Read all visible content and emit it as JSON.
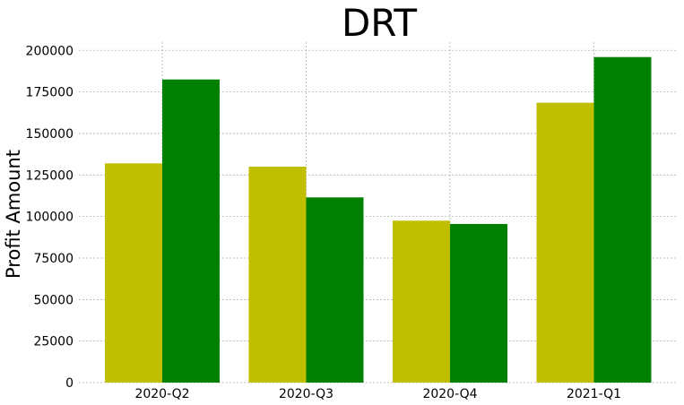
{
  "chart_data": {
    "type": "bar",
    "title": "DRT",
    "xlabel": "",
    "ylabel": "Profit Amount",
    "categories": [
      "2020-Q2",
      "2020-Q3",
      "2020-Q4",
      "2021-Q1"
    ],
    "series": [
      {
        "color": "#bfbf00",
        "values": [
          132000,
          130000,
          97500,
          168500
        ]
      },
      {
        "color": "#008000",
        "values": [
          182500,
          111500,
          95500,
          196000
        ]
      }
    ],
    "ylim": [
      0,
      205000
    ],
    "yticks": [
      0,
      25000,
      50000,
      75000,
      100000,
      125000,
      150000,
      175000,
      200000
    ],
    "grid": true,
    "legend": "none"
  }
}
